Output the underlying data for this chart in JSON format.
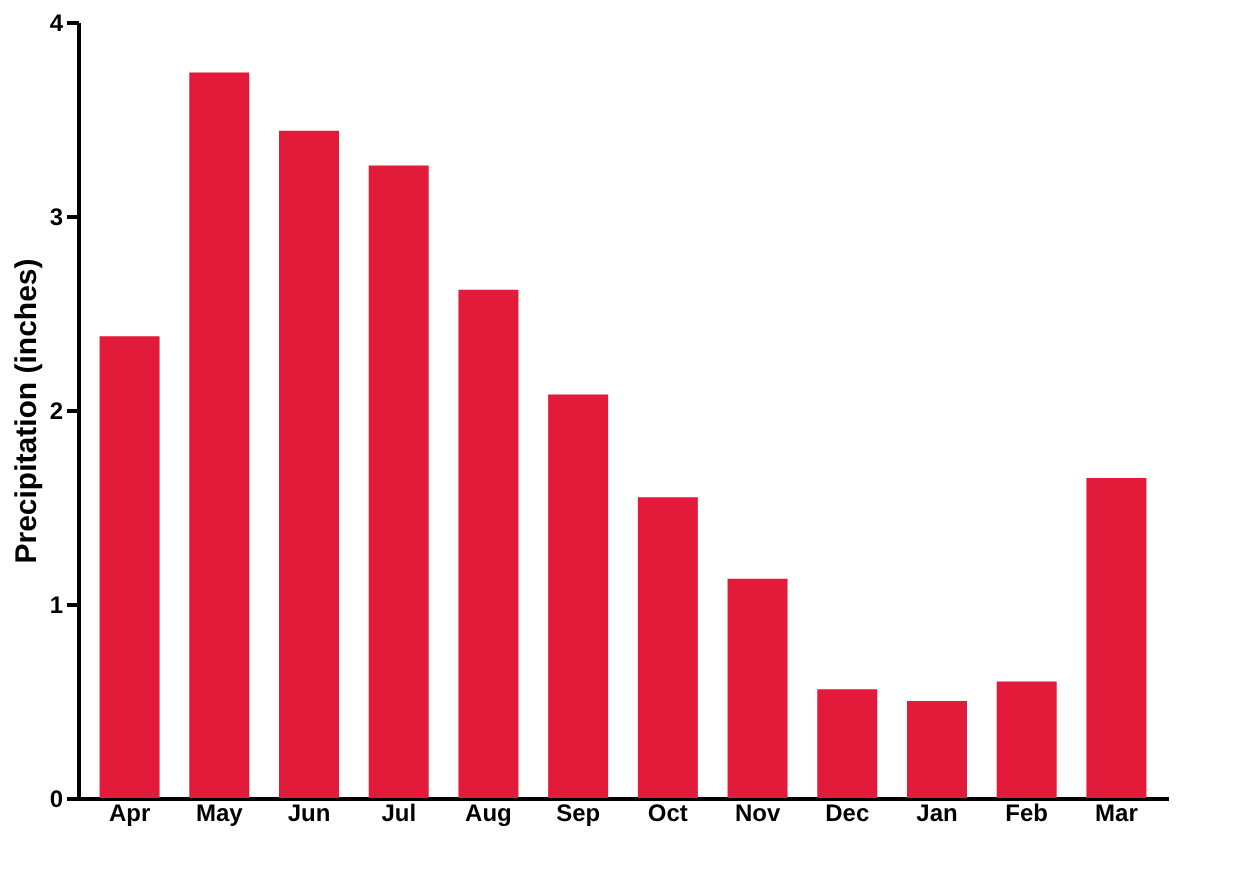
{
  "chart_data": {
    "type": "bar",
    "ylabel": "Precipitation (inches)",
    "categories": [
      "Apr",
      "May",
      "Jun",
      "Jul",
      "Aug",
      "Sep",
      "Oct",
      "Nov",
      "Dec",
      "Jan",
      "Feb",
      "Mar"
    ],
    "values": [
      2.38,
      3.74,
      3.44,
      3.26,
      2.62,
      2.08,
      1.55,
      1.13,
      0.56,
      0.5,
      0.6,
      1.65
    ],
    "color": "#e31b3b",
    "ylim": [
      0,
      4
    ],
    "yticks": [
      0,
      1,
      2,
      3,
      4
    ],
    "grid": false
  }
}
